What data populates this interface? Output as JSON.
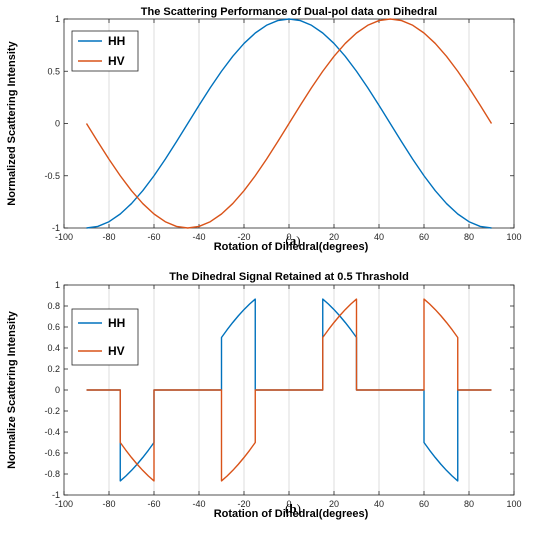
{
  "chart_data": [
    {
      "type": "line",
      "title": "The Scattering Performance of Dual-pol data on Dihedral",
      "xlabel": "Rotation of  Dihedral(degrees)",
      "ylabel": "Normalized Scattering Intensity",
      "xlim": [
        -100,
        100
      ],
      "ylim": [
        -1,
        1
      ],
      "xticks": [
        -100,
        -80,
        -60,
        -40,
        -20,
        0,
        20,
        40,
        60,
        80,
        100
      ],
      "yticks": [
        -1,
        -0.5,
        0,
        0.5,
        1
      ],
      "grid": "x-major",
      "legend_position": "top-left",
      "caption_open": "(",
      "caption_letter": "a",
      "caption_close": ")",
      "x": [
        -90,
        -85,
        -80,
        -75,
        -70,
        -65,
        -60,
        -55,
        -50,
        -45,
        -40,
        -35,
        -30,
        -25,
        -20,
        -15,
        -10,
        -5,
        0,
        5,
        10,
        15,
        20,
        25,
        30,
        35,
        40,
        45,
        50,
        55,
        60,
        65,
        70,
        75,
        80,
        85,
        90
      ],
      "series": [
        {
          "name": "HH",
          "color": "#0072bd",
          "values": [
            -1,
            -0.985,
            -0.94,
            -0.866,
            -0.766,
            -0.643,
            -0.5,
            -0.342,
            -0.174,
            0,
            0.174,
            0.342,
            0.5,
            0.643,
            0.766,
            0.866,
            0.94,
            0.985,
            1,
            0.985,
            0.94,
            0.866,
            0.766,
            0.643,
            0.5,
            0.342,
            0.174,
            0,
            -0.174,
            -0.342,
            -0.5,
            -0.643,
            -0.766,
            -0.866,
            -0.94,
            -0.985,
            -1
          ]
        },
        {
          "name": "HV",
          "color": "#d95319",
          "values": [
            0,
            -0.174,
            -0.342,
            -0.5,
            -0.643,
            -0.766,
            -0.866,
            -0.94,
            -0.985,
            -1,
            -0.985,
            -0.94,
            -0.866,
            -0.766,
            -0.643,
            -0.5,
            -0.342,
            -0.174,
            0,
            0.174,
            0.342,
            0.5,
            0.643,
            0.766,
            0.866,
            0.94,
            0.985,
            1,
            0.985,
            0.94,
            0.866,
            0.766,
            0.643,
            0.5,
            0.342,
            0.174,
            0
          ]
        }
      ]
    },
    {
      "type": "line",
      "title": "The Dihedral Signal Retained at 0.5 Thrashold",
      "xlabel": "Rotation of Dihedral(degrees)",
      "ylabel": "Normalize Scattering Intensity",
      "xlim": [
        -100,
        100
      ],
      "ylim": [
        -1,
        1
      ],
      "xticks": [
        -100,
        -80,
        -60,
        -40,
        -20,
        0,
        20,
        40,
        60,
        80,
        100
      ],
      "yticks": [
        -1,
        -0.8,
        -0.6,
        -0.4,
        -0.2,
        0,
        0.2,
        0.4,
        0.6,
        0.8,
        1
      ],
      "grid": "x-major",
      "legend_position": "top-left",
      "caption_open": "(",
      "caption_letter": "b",
      "caption_close": ")",
      "series": [
        {
          "name": "HH",
          "color": "#0072bd",
          "x": [
            -90,
            -75,
            -75,
            -72.5,
            -70,
            -67.5,
            -65,
            -62.5,
            -60,
            -60,
            -30,
            -30,
            -27.5,
            -25,
            -22.5,
            -20,
            -17.5,
            -15,
            -15,
            15,
            15,
            17.5,
            20,
            22.5,
            25,
            27.5,
            30,
            30,
            60,
            60,
            62.5,
            65,
            67.5,
            70,
            72.5,
            75,
            75,
            90
          ],
          "y": [
            0,
            0,
            -0.866,
            -0.819,
            -0.766,
            -0.707,
            -0.643,
            -0.574,
            -0.5,
            0,
            0,
            0.5,
            0.574,
            0.643,
            0.707,
            0.766,
            0.819,
            0.866,
            0,
            0,
            0.866,
            0.819,
            0.766,
            0.707,
            0.643,
            0.574,
            0.5,
            0,
            0,
            -0.5,
            -0.574,
            -0.643,
            -0.707,
            -0.766,
            -0.819,
            -0.866,
            0,
            0
          ]
        },
        {
          "name": "HV",
          "color": "#d95319",
          "x": [
            -90,
            -75,
            -75,
            -72.5,
            -70,
            -67.5,
            -65,
            -62.5,
            -60,
            -60,
            -30,
            -30,
            -27.5,
            -25,
            -22.5,
            -20,
            -17.5,
            -15,
            -15,
            15,
            15,
            17.5,
            20,
            22.5,
            25,
            27.5,
            30,
            30,
            60,
            60,
            62.5,
            65,
            67.5,
            70,
            72.5,
            75,
            75,
            90
          ],
          "y": [
            0,
            0,
            -0.5,
            -0.574,
            -0.643,
            -0.707,
            -0.766,
            -0.819,
            -0.866,
            0,
            0,
            -0.866,
            -0.819,
            -0.766,
            -0.707,
            -0.643,
            -0.574,
            -0.5,
            0,
            0,
            0.5,
            0.574,
            0.643,
            0.707,
            0.766,
            0.819,
            0.866,
            0,
            0,
            0.866,
            0.819,
            0.766,
            0.707,
            0.643,
            0.574,
            0.5,
            0,
            0
          ]
        }
      ]
    }
  ]
}
